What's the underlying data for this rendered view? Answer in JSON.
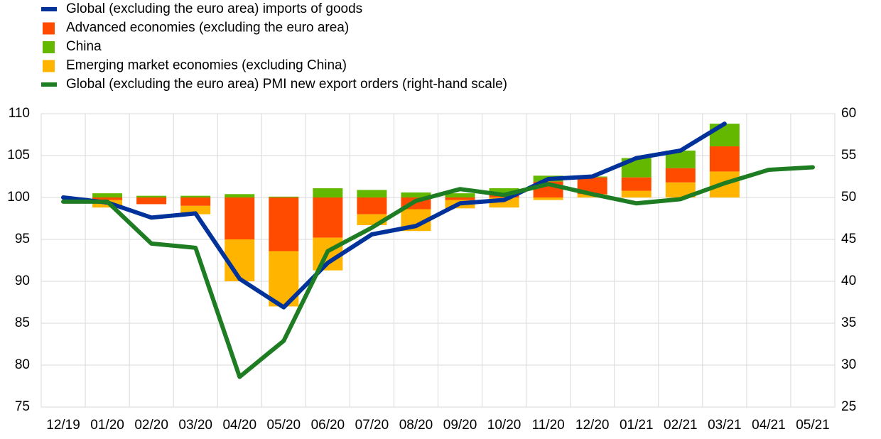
{
  "chart_data": {
    "type": "bar",
    "categories": [
      "12/19",
      "01/20",
      "02/20",
      "03/20",
      "04/20",
      "05/20",
      "06/20",
      "07/20",
      "08/20",
      "09/20",
      "10/20",
      "11/20",
      "12/20",
      "01/21",
      "02/21",
      "03/21",
      "04/21",
      "05/21"
    ],
    "series": [
      {
        "name": "Global (excluding the euro area) imports of goods",
        "type": "line",
        "color": "#003299",
        "values": [
          100,
          99.4,
          97.6,
          98.1,
          90.3,
          86.9,
          92.2,
          95.6,
          96.6,
          99.3,
          99.7,
          102.2,
          102.5,
          104.7,
          105.6,
          108.8,
          null,
          null
        ]
      },
      {
        "name": "Advanced economies (excluding the euro area)",
        "type": "bar",
        "color": "#ff4b00",
        "values": [
          null,
          -0.3,
          -0.8,
          -1.0,
          -5.0,
          -6.4,
          -4.8,
          -2.0,
          -1.4,
          -0.3,
          0.5,
          1.9,
          2.0,
          1.6,
          1.7,
          3.0,
          null,
          null
        ]
      },
      {
        "name": "China",
        "type": "bar",
        "color": "#65b800",
        "values": [
          null,
          0.5,
          0.2,
          0.2,
          0.4,
          0.1,
          1.1,
          0.9,
          0.6,
          0.5,
          0.6,
          0.7,
          0.1,
          2.3,
          2.1,
          2.7,
          null,
          null
        ]
      },
      {
        "name": "Emerging market economies (excluding China)",
        "type": "bar",
        "color": "#ffb400",
        "values": [
          null,
          -0.9,
          0,
          -1.0,
          -5.0,
          -6.6,
          -3.9,
          -1.3,
          -2.6,
          -1.0,
          -1.2,
          -0.3,
          0.4,
          0.8,
          1.8,
          3.1,
          null,
          null
        ]
      },
      {
        "name": "Global (excluding the euro area) PMI new export orders (right-hand scale)",
        "type": "line",
        "color": "#1e7d23",
        "axis": "y2",
        "values": [
          49.5,
          49.5,
          44.5,
          44.0,
          28.6,
          32.9,
          43.6,
          46.4,
          49.6,
          51.0,
          50.3,
          51.6,
          50.4,
          49.3,
          49.8,
          51.7,
          53.3,
          53.6
        ]
      }
    ],
    "ylim": [
      75,
      110
    ],
    "yticks": [
      75,
      80,
      85,
      90,
      95,
      100,
      105,
      110
    ],
    "y2lim": [
      25,
      60
    ],
    "y2ticks": [
      25,
      30,
      35,
      40,
      45,
      50,
      55,
      60
    ],
    "grid": true
  }
}
